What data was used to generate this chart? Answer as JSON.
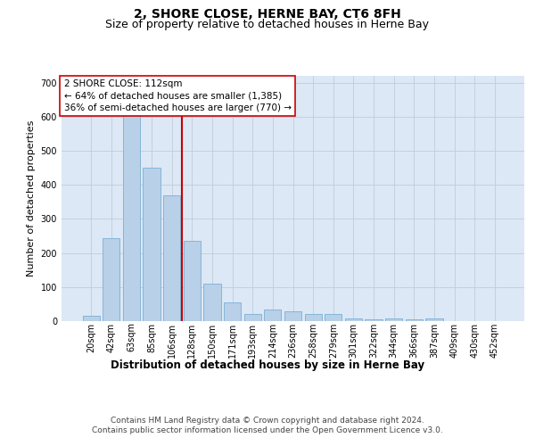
{
  "title": "2, SHORE CLOSE, HERNE BAY, CT6 8FH",
  "subtitle": "Size of property relative to detached houses in Herne Bay",
  "xlabel": "Distribution of detached houses by size in Herne Bay",
  "ylabel": "Number of detached properties",
  "categories": [
    "20sqm",
    "42sqm",
    "63sqm",
    "85sqm",
    "106sqm",
    "128sqm",
    "150sqm",
    "171sqm",
    "193sqm",
    "214sqm",
    "236sqm",
    "258sqm",
    "279sqm",
    "301sqm",
    "322sqm",
    "344sqm",
    "366sqm",
    "387sqm",
    "409sqm",
    "430sqm",
    "452sqm"
  ],
  "values": [
    15,
    243,
    610,
    450,
    370,
    235,
    110,
    55,
    20,
    35,
    30,
    22,
    20,
    8,
    6,
    7,
    6,
    7,
    0,
    0,
    0
  ],
  "bar_color": "#b8d0e8",
  "bar_edge_color": "#7bafd4",
  "vline_color": "#cc0000",
  "vline_pos": 4.5,
  "annotation_text": "2 SHORE CLOSE: 112sqm\n← 64% of detached houses are smaller (1,385)\n36% of semi-detached houses are larger (770) →",
  "ylim_max": 720,
  "yticks": [
    0,
    100,
    200,
    300,
    400,
    500,
    600,
    700
  ],
  "bg_color": "#dce8f5",
  "footer_text": "Contains HM Land Registry data © Crown copyright and database right 2024.\nContains public sector information licensed under the Open Government Licence v3.0.",
  "title_fontsize": 10,
  "subtitle_fontsize": 9,
  "ylabel_fontsize": 8,
  "xlabel_fontsize": 8.5,
  "tick_fontsize": 7,
  "ann_fontsize": 7.5,
  "footer_fontsize": 6.5
}
